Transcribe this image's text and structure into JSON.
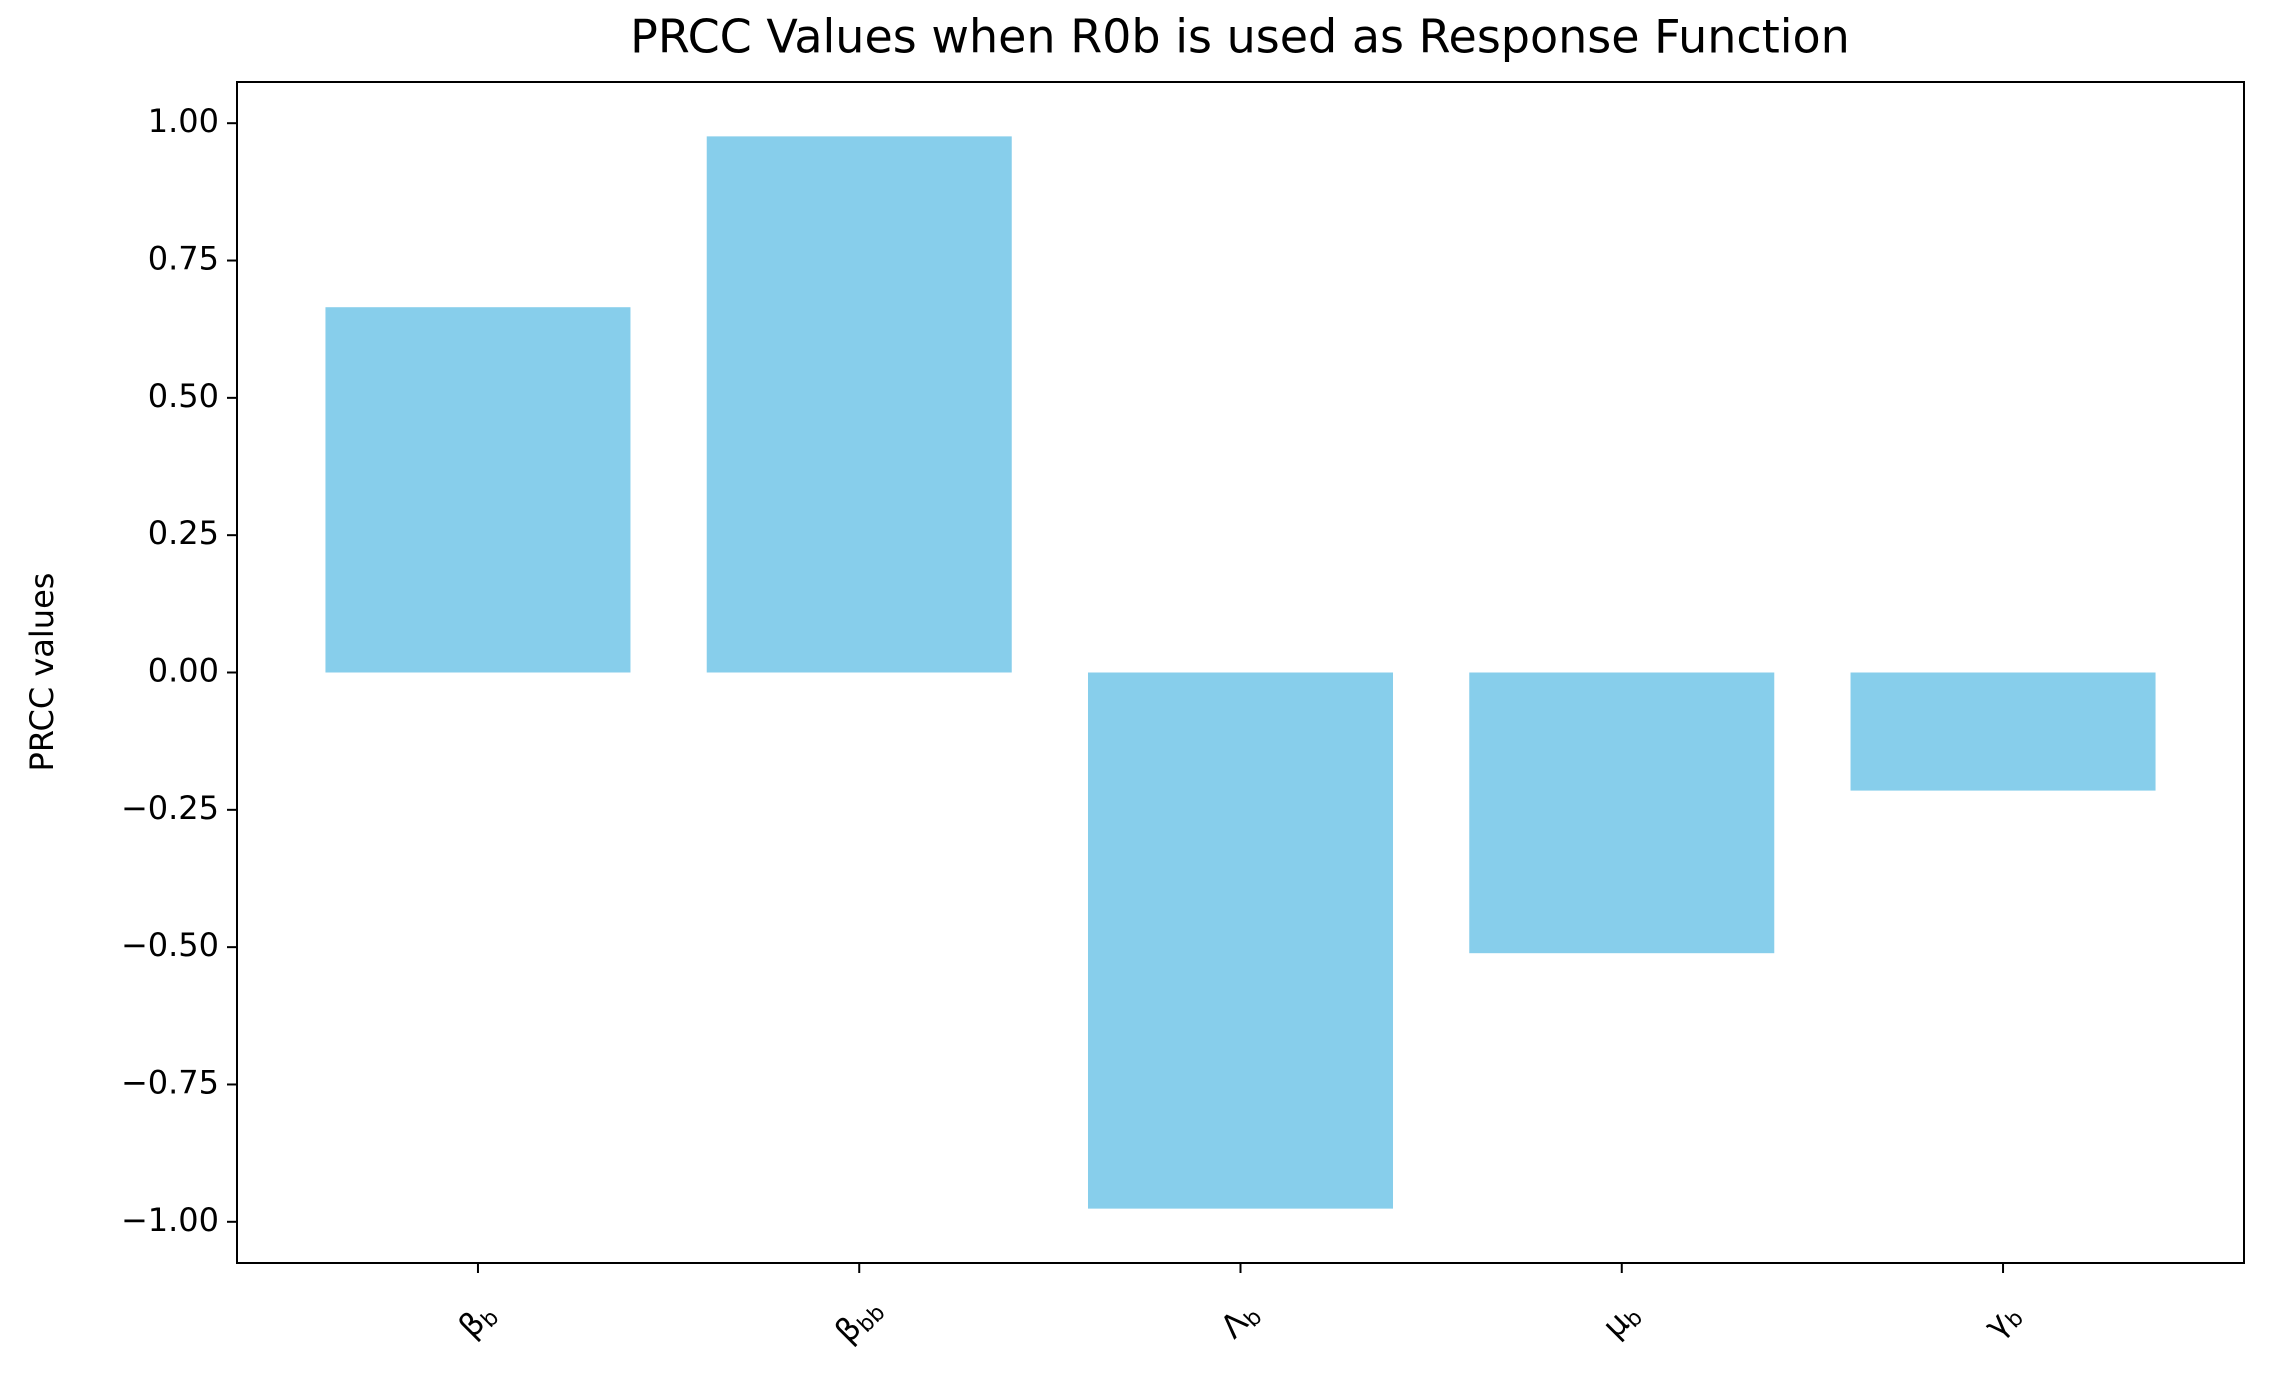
{
  "chart_data": {
    "type": "bar",
    "title": "PRCC Values when R0b is used as Response Function",
    "y_label": "PRCC values",
    "categories": [
      "βb",
      "βbb",
      "Λb",
      "μb",
      "γb"
    ],
    "values": [
      0.665,
      0.976,
      -0.976,
      -0.511,
      -0.215
    ],
    "color": "#87ceeb",
    "ylim": [
      -1.075,
      1.075
    ],
    "yticks": [
      {
        "value": -1,
        "label": "−1.00"
      },
      {
        "value": -0.75,
        "label": "−0.75"
      },
      {
        "value": -0.5,
        "label": "−0.50"
      },
      {
        "value": -0.25,
        "label": "−0.25"
      },
      {
        "value": 0,
        "label": "0.00"
      },
      {
        "value": 0.25,
        "label": "0.25"
      },
      {
        "value": 0.5,
        "label": "0.50"
      },
      {
        "value": 0.75,
        "label": "0.75"
      },
      {
        "value": 1,
        "label": "1.00"
      }
    ],
    "grid": false
  }
}
